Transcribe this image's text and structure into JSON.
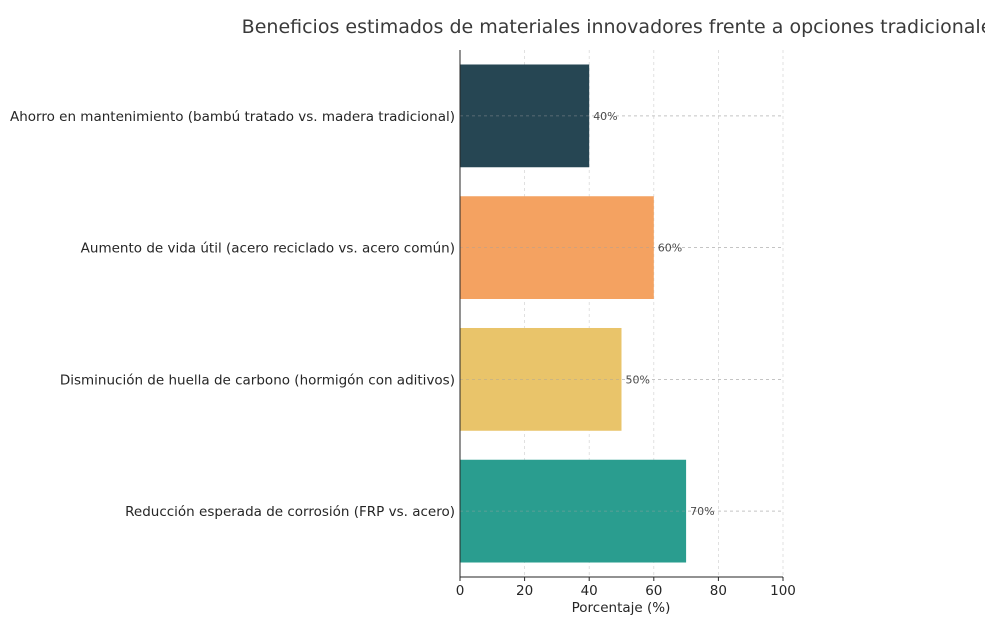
{
  "chart_data": {
    "type": "bar",
    "orientation": "horizontal",
    "title": "Beneficios estimados de materiales innovadores frente a opciones tradicionales",
    "xlabel": "Porcentaje (%)",
    "ylabel": "",
    "xlim": [
      0,
      100
    ],
    "xticks": [
      0,
      20,
      40,
      60,
      80,
      100
    ],
    "grid": true,
    "categories": [
      "Ahorro en mantenimiento (bambú tratado vs. madera tradicional)",
      "Aumento de vida útil (acero reciclado vs. acero común)",
      "Disminución de huella de carbono (hormigón con aditivos)",
      "Reducción esperada de corrosión (FRP vs. acero)"
    ],
    "values": [
      40,
      60,
      50,
      70
    ],
    "data_labels": [
      "40%",
      "60%",
      "50%",
      "70%"
    ],
    "colors": [
      "#264653",
      "#F4A261",
      "#E9C46A",
      "#2A9D8F"
    ]
  }
}
